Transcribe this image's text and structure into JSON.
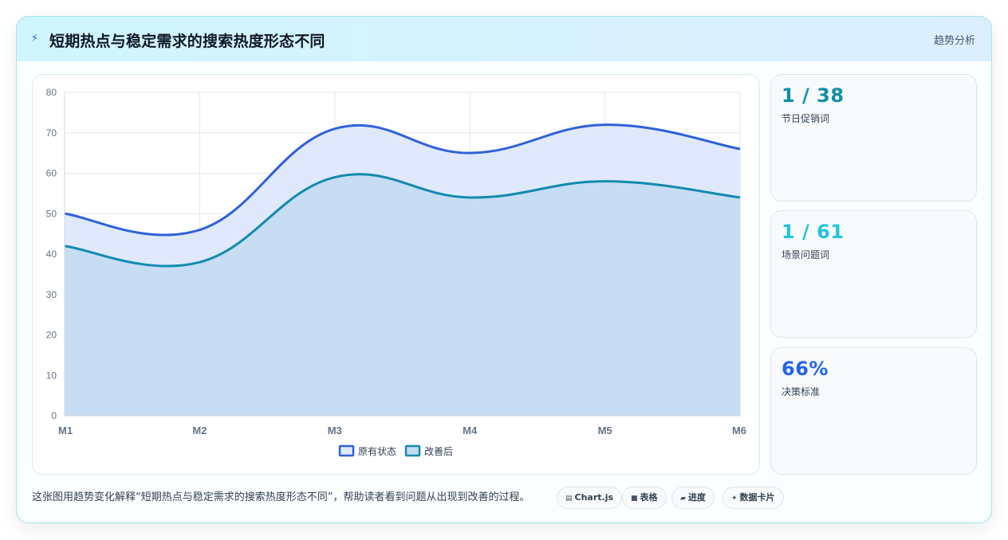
{
  "header": {
    "title": "短期热点与稳定需求的搜索热度形态不同",
    "tag": "趋势分析",
    "icon": "lightning-icon"
  },
  "stats": [
    {
      "value": "1 / 38",
      "label": "节日促销词",
      "color": "#0e8fa8"
    },
    {
      "value": "1 / 61",
      "label": "场景问题词",
      "color": "#22c5dc"
    },
    {
      "value": "66%",
      "label": "决策标准",
      "color": "#2563eb"
    }
  ],
  "footer": {
    "description": "这张图用趋势变化解释“短期热点与稳定需求的搜索热度形态不同”，帮助读者看到问题从出现到改善的过程。",
    "chips": [
      {
        "icon": "chart-icon",
        "glyph": "▤",
        "label": "Chart.js"
      },
      {
        "icon": "table-icon",
        "glyph": "■",
        "label": "表格"
      },
      {
        "icon": "progress-icon",
        "glyph": "▰",
        "label": "进度"
      },
      {
        "icon": "sparkle-icon",
        "glyph": "✦",
        "label": "数据卡片"
      }
    ]
  },
  "chart_data": {
    "type": "area",
    "categories": [
      "M1",
      "M2",
      "M3",
      "M4",
      "M5",
      "M6"
    ],
    "series": [
      {
        "name": "原有状态",
        "values": [
          50,
          46,
          71,
          65,
          72,
          66
        ],
        "color": "#2f62d8",
        "fill": "#dde8fb"
      },
      {
        "name": "改善后",
        "values": [
          42,
          38,
          59,
          54,
          58,
          54
        ],
        "color": "#138ab0",
        "fill": "#c3dcf2"
      }
    ],
    "ylim": [
      0,
      80
    ],
    "yticks": [
      0,
      10,
      20,
      30,
      40,
      50,
      60,
      70,
      80
    ],
    "grid": true,
    "legend": "bottom-center"
  }
}
